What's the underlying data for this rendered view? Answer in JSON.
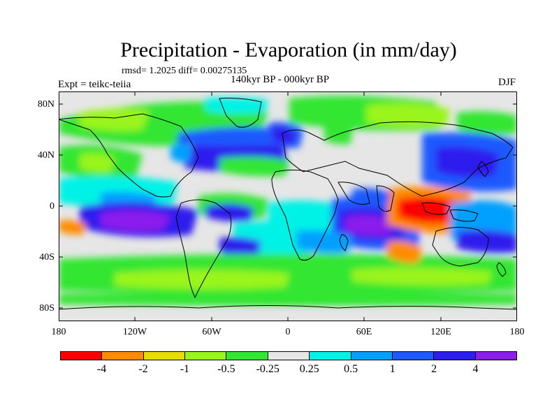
{
  "header": {
    "title": "Precipitation - Evaporation (in mm/day)",
    "stats": "rmsd= 1.2025 diff= 0.00275135",
    "experiment": "Expt = teikc-teiia",
    "period": "140kyr BP - 000kyr BP",
    "season": "DJF"
  },
  "axes": {
    "y_ticks": [
      "80N",
      "40N",
      "0",
      "40S",
      "80S"
    ],
    "x_ticks": [
      "180",
      "120W",
      "60W",
      "0",
      "60E",
      "120E",
      "180"
    ]
  },
  "legend": {
    "colors": [
      "#ff0000",
      "#ff8c00",
      "#e6dc00",
      "#9af51e",
      "#33e633",
      "#e6e6e6",
      "#00f2e6",
      "#00a0ff",
      "#1e5aff",
      "#2d1eee",
      "#8c1eeb"
    ],
    "labels": [
      "-4",
      "-2",
      "-1",
      "-0.5",
      "-0.25",
      "0.25",
      "0.5",
      "1",
      "2",
      "4"
    ]
  }
}
